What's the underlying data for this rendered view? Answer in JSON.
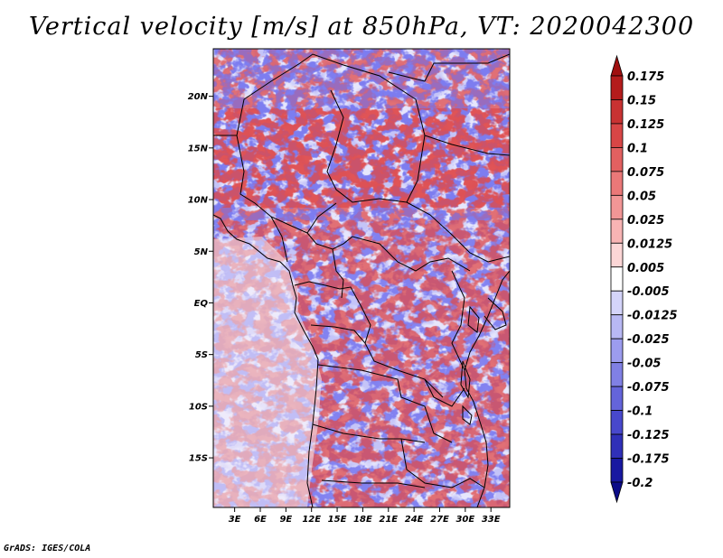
{
  "title": "Vertical velocity [m/s] at 850hPa, VT: 2020042300",
  "credit": "GrADS: IGES/COLA",
  "map": {
    "y_labels": [
      {
        "label": "20N",
        "lat": 20
      },
      {
        "label": "15N",
        "lat": 15
      },
      {
        "label": "10N",
        "lat": 10
      },
      {
        "label": "5N",
        "lat": 5
      },
      {
        "label": "EQ",
        "lat": 0
      },
      {
        "label": "5S",
        "lat": -5
      },
      {
        "label": "10S",
        "lat": -10
      },
      {
        "label": "15S",
        "lat": -15
      }
    ],
    "x_labels": [
      {
        "label": "3E",
        "lon": 3
      },
      {
        "label": "6E",
        "lon": 6
      },
      {
        "label": "9E",
        "lon": 9
      },
      {
        "label": "12E",
        "lon": 12
      },
      {
        "label": "15E",
        "lon": 15
      },
      {
        "label": "18E",
        "lon": 18
      },
      {
        "label": "21E",
        "lon": 21
      },
      {
        "label": "24E",
        "lon": 24
      },
      {
        "label": "27E",
        "lon": 27
      },
      {
        "label": "30E",
        "lon": 30
      },
      {
        "label": "33E",
        "lon": 33
      }
    ],
    "lon_range": [
      0.5,
      35.2
    ],
    "lat_range": [
      -19.8,
      24.6
    ]
  },
  "colorbar": {
    "levels": [
      "0.175",
      "0.15",
      "0.125",
      "0.1",
      "0.075",
      "0.05",
      "0.025",
      "0.0125",
      "0.005",
      "-0.005",
      "-0.0125",
      "-0.025",
      "-0.05",
      "-0.075",
      "-0.1",
      "-0.125",
      "-0.175",
      "-0.2"
    ],
    "colors": [
      "#a01010",
      "#b41c1c",
      "#c83232",
      "#d84646",
      "#e26060",
      "#ea7878",
      "#f29696",
      "#f8b4b4",
      "#fcd6d6",
      "#ffffff",
      "#d4d4fa",
      "#b8b8f4",
      "#9c9cee",
      "#8080e4",
      "#6464da",
      "#4848cc",
      "#3030b8",
      "#1818a0",
      "#0c0c88"
    ]
  }
}
